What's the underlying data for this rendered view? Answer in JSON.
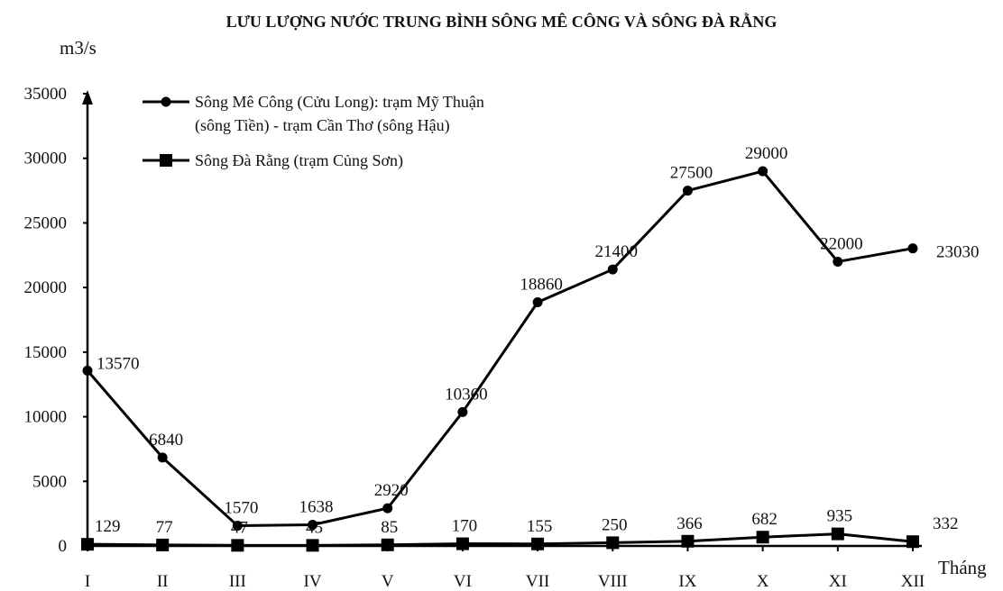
{
  "chart_data": {
    "type": "line",
    "title": "LƯU LƯỢNG NƯỚC TRUNG BÌNH SÔNG MÊ CÔNG VÀ SÔNG ĐÀ RẰNG",
    "ylabel": "m3/s",
    "xlabel": "Tháng",
    "ylim": [
      0,
      35000
    ],
    "yticks": [
      "0",
      "5000",
      "10000",
      "15000",
      "20000",
      "25000",
      "30000",
      "35000"
    ],
    "categories": [
      "I",
      "II",
      "III",
      "IV",
      "V",
      "VI",
      "VII",
      "VIII",
      "IX",
      "X",
      "XI",
      "XII"
    ],
    "legend_position": "top-left",
    "grid": false,
    "series": [
      {
        "name": "Sông Mê Công (Cửu Long): trạm Mỹ Thuận (sông Tiền) - trạm Cần Thơ (sông Hậu)",
        "legend_lines": [
          "Sông Mê Công (Cửu Long): trạm Mỹ Thuận",
          "(sông Tiền) - trạm Cần Thơ (sông Hậu)"
        ],
        "marker": "circle",
        "values": [
          13570,
          6840,
          1570,
          1638,
          2920,
          10360,
          18860,
          21400,
          27500,
          29000,
          22000,
          23030
        ],
        "labels": [
          "13570",
          "6840",
          "1570",
          "1638",
          "2920",
          "10360",
          "18860",
          "21400",
          "27500",
          "29000",
          "22000",
          "23030"
        ]
      },
      {
        "name": "Sông Đà Rằng (trạm Củng Sơn)",
        "legend_lines": [
          "Sông Đà Rằng (trạm Củng Sơn)"
        ],
        "marker": "square",
        "values": [
          129,
          77,
          47,
          45,
          85,
          170,
          155,
          250,
          366,
          682,
          935,
          332
        ],
        "labels": [
          "129",
          "77",
          "47",
          "45",
          "85",
          "170",
          "155",
          "250",
          "366",
          "682",
          "935",
          "332"
        ]
      }
    ],
    "colors": {
      "line": "#000000",
      "axis": "#000000"
    }
  }
}
